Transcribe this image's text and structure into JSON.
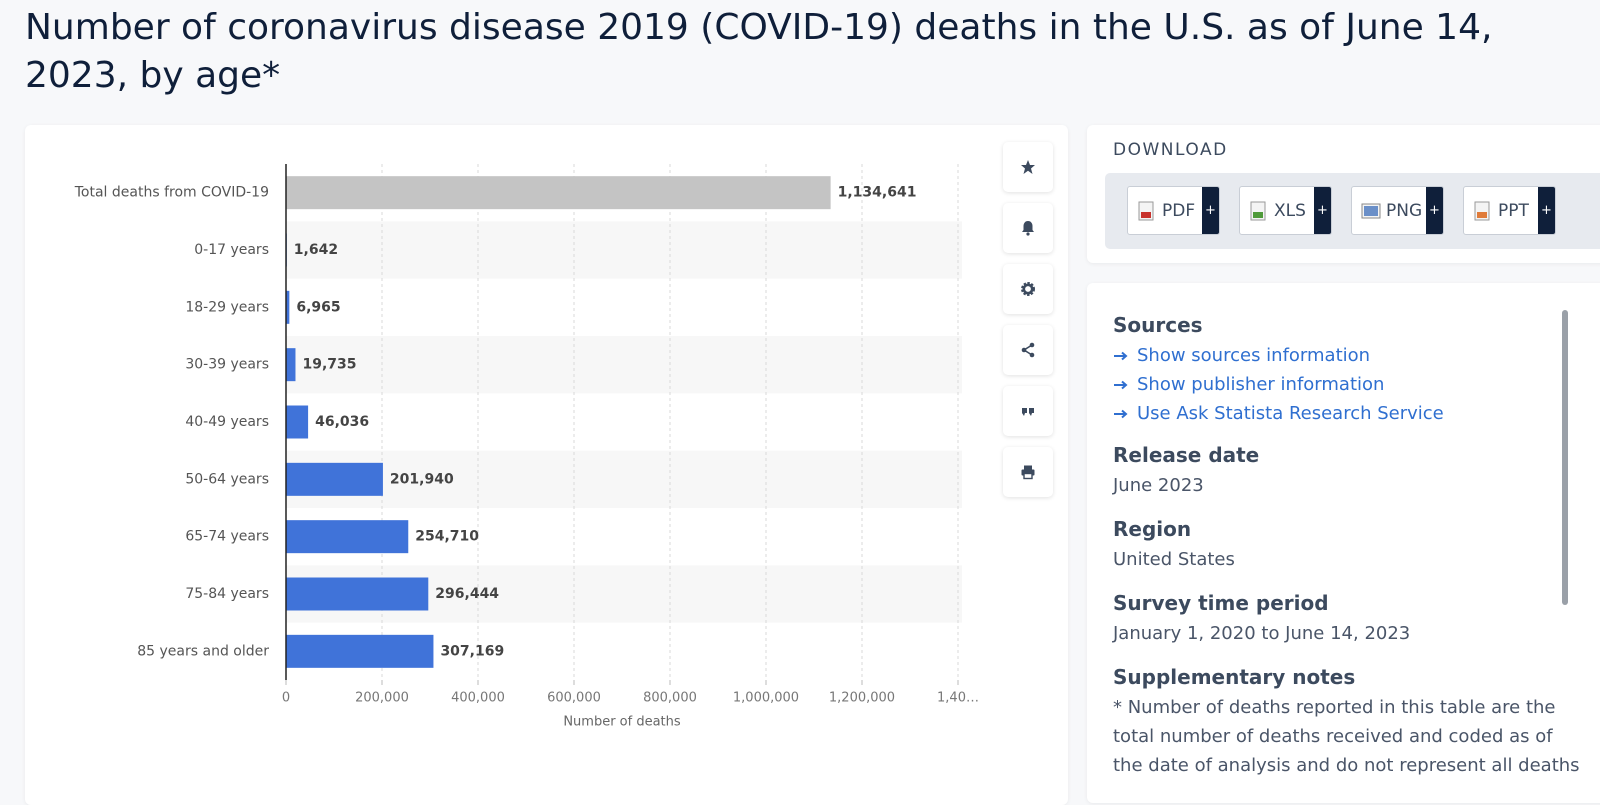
{
  "chart_data": {
    "type": "bar",
    "orientation": "horizontal",
    "title": "Number of coronavirus disease 2019 (COVID-19) deaths in the U.S. as of June 14, 2023, by age*",
    "categories": [
      "Total deaths from COVID-19",
      "0-17 years",
      "18-29 years",
      "30-39 years",
      "40-49 years",
      "50-64 years",
      "65-74 years",
      "75-84 years",
      "85 years and older"
    ],
    "values": [
      1134641,
      1642,
      6965,
      19735,
      46036,
      201940,
      254710,
      296444,
      307169
    ],
    "value_labels": [
      "1,134,641",
      "1,642",
      "6,965",
      "19,735",
      "46,036",
      "201,940",
      "254,710",
      "296,444",
      "307,169"
    ],
    "colors": [
      "#c4c4c4",
      "#4073d9",
      "#4073d9",
      "#4073d9",
      "#4073d9",
      "#4073d9",
      "#4073d9",
      "#4073d9",
      "#4073d9"
    ],
    "xlim": [
      0,
      1400000
    ],
    "xticks": [
      0,
      {
        "value": 200000,
        "label": "200,000"
      },
      {
        "value": 400000,
        "label": "400,000"
      },
      {
        "value": 600000,
        "label": "600,000"
      },
      {
        "value": 800000,
        "label": "800,000"
      },
      {
        "value": 1000000,
        "label": "1,000,000"
      },
      {
        "value": 1200000,
        "label": "1,200,000"
      },
      {
        "value": 1400000,
        "label": "1,40…"
      }
    ],
    "xlabel": "Number of deaths",
    "grid": true
  },
  "download": {
    "heading": "DOWNLOAD",
    "buttons": [
      "PDF",
      "XLS",
      "PNG",
      "PPT"
    ],
    "more": "+"
  },
  "details": {
    "sources": {
      "heading": "Sources",
      "links": [
        "Show sources information",
        "Show publisher information",
        "Use Ask Statista Research Service"
      ]
    },
    "release_date": {
      "heading": "Release date",
      "value": "June 2023"
    },
    "region": {
      "heading": "Region",
      "value": "United States"
    },
    "survey_period": {
      "heading": "Survey time period",
      "value": "January 1, 2020 to June 14, 2023"
    },
    "notes": {
      "heading": "Supplementary notes",
      "lines": [
        "* Number of deaths reported in this table are the",
        "total number of deaths received and coded as of",
        "the date of analysis and do not represent all deaths"
      ]
    }
  }
}
